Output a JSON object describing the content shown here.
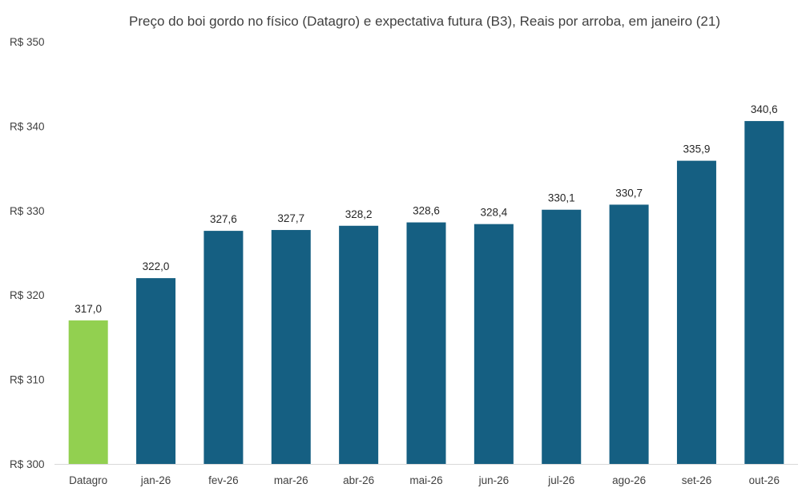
{
  "chart_data": {
    "type": "bar",
    "title": "Preço do boi gordo no físico (Datagro)  e expectativa futura (B3), Reais por arroba, em janeiro (21)",
    "xlabel": "",
    "ylabel": "",
    "ylim": [
      300,
      350
    ],
    "ytick_step": 10,
    "ytick_labels": [
      "R$ 300",
      "R$ 310",
      "R$ 320",
      "R$ 330",
      "R$ 340",
      "R$ 350"
    ],
    "categories": [
      "Datagro",
      "jan-26",
      "fev-26",
      "mar-26",
      "abr-26",
      "mai-26",
      "jun-26",
      "jul-26",
      "ago-26",
      "set-26",
      "out-26"
    ],
    "values": [
      317.0,
      322.0,
      327.6,
      327.7,
      328.2,
      328.6,
      328.4,
      330.1,
      330.7,
      335.9,
      340.6
    ],
    "data_labels": [
      "317,0",
      "322,0",
      "327,6",
      "327,7",
      "328,2",
      "328,6",
      "328,4",
      "330,1",
      "330,7",
      "335,9",
      "340,6"
    ],
    "colors": {
      "highlight": "#92d050",
      "bars": "#155f82",
      "axis": "#d9d9d9"
    },
    "highlight_index": 0,
    "grid": false,
    "legend": "none"
  }
}
